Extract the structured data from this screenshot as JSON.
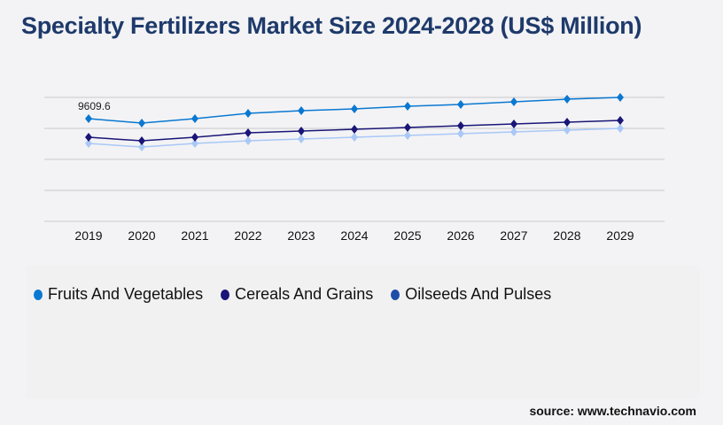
{
  "chart_data": {
    "type": "line",
    "title": "Specialty Fertilizers Market Size 2024-2028 (US$ Million)",
    "xlabel": "",
    "ylabel": "",
    "x": [
      "2019",
      "2020",
      "2021",
      "2022",
      "2023",
      "2024",
      "2025",
      "2026",
      "2027",
      "2028",
      "2029"
    ],
    "ylim": [
      0,
      11600
    ],
    "grid": true,
    "legend_position": "bottom-left",
    "series": [
      {
        "name": "Fruits And Vegetables",
        "color": "#0a78d1",
        "values": [
          9609.6,
          9195,
          9610,
          10107,
          10355,
          10521,
          10770,
          10935,
          11184,
          11432,
          11598
        ]
      },
      {
        "name": "Cereals And Grains",
        "color": "#1a1577",
        "values": [
          7870,
          7538,
          7870,
          8284,
          8450,
          8615,
          8781,
          8947,
          9113,
          9279,
          9444
        ]
      },
      {
        "name": "Oilseeds And Pulses",
        "color": "#a9c8f7",
        "legend_color": "#1e4eaa",
        "values": [
          7290,
          6958,
          7290,
          7539,
          7705,
          7870,
          8036,
          8202,
          8367,
          8533,
          8698
        ]
      }
    ],
    "annotations": [
      {
        "series": 0,
        "index": 0,
        "text": "9609.6"
      }
    ]
  },
  "source": "source: www.technavio.com"
}
